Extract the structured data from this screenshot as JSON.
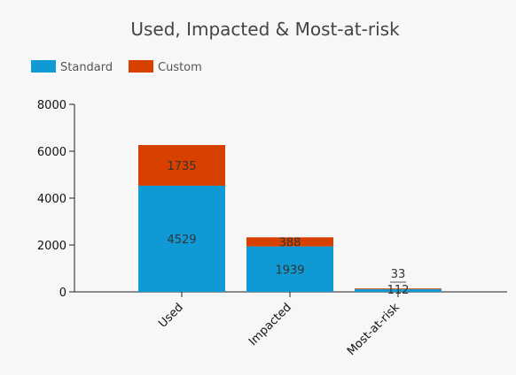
{
  "chart_data": {
    "type": "bar",
    "stacked": true,
    "title": "Used, Impacted & Most-at-risk",
    "categories": [
      "Used",
      "Impacted",
      "Most-at-risk"
    ],
    "series": [
      {
        "name": "Standard",
        "values": [
          4529,
          1939,
          112
        ],
        "color": "#0f9ad6"
      },
      {
        "name": "Custom",
        "values": [
          1735,
          388,
          33
        ],
        "color": "#d84000"
      }
    ],
    "data_labels": {
      "Standard": [
        "4529",
        "1939",
        "112"
      ],
      "Custom": [
        "1735",
        "388",
        "33"
      ]
    },
    "ylim": [
      0,
      8000
    ],
    "yticks": [
      0,
      2000,
      4000,
      6000,
      8000
    ],
    "legend": "top-left",
    "grid": false
  }
}
